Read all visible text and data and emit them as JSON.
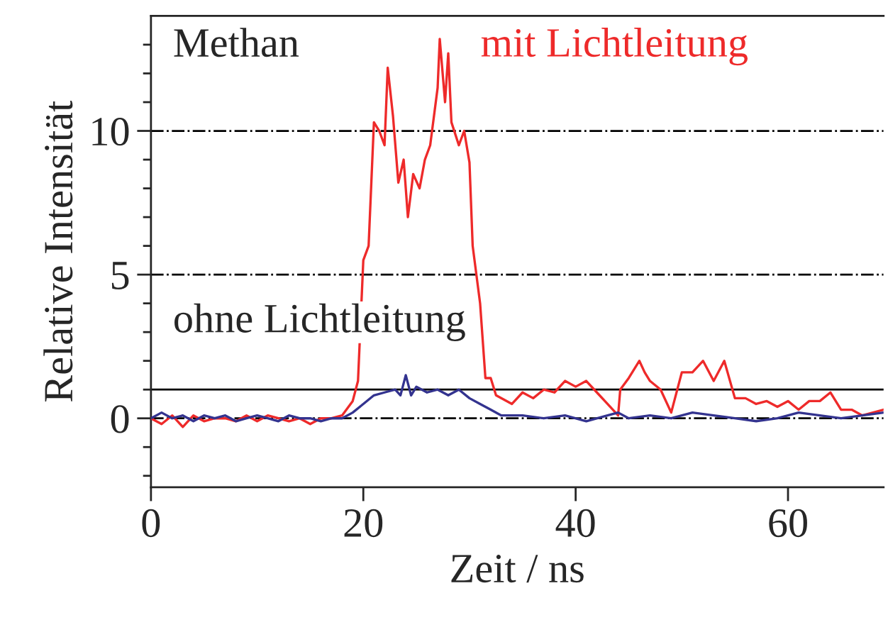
{
  "chart_data": {
    "type": "line",
    "xlabel": "Zeit / ns",
    "ylabel": "Relative Intensität",
    "xlim": [
      0,
      69
    ],
    "ylim": [
      -2.4,
      14
    ],
    "xticks": [
      0,
      20,
      40,
      60
    ],
    "yticks": [
      {
        "value": -2,
        "label": null
      },
      {
        "value": -1,
        "label": null
      },
      0,
      {
        "value": 1,
        "label": null
      },
      {
        "value": 2,
        "label": null
      },
      {
        "value": 3,
        "label": null
      },
      {
        "value": 4,
        "label": null
      },
      5,
      {
        "value": 6,
        "label": null
      },
      {
        "value": 7,
        "label": null
      },
      {
        "value": 8,
        "label": null
      },
      {
        "value": 9,
        "label": null
      },
      10,
      {
        "value": 11,
        "label": null
      },
      {
        "value": 12,
        "label": null
      },
      {
        "value": 13,
        "label": null
      }
    ],
    "grid": false,
    "legend": false,
    "annotations": [
      "Methan",
      "ohne Lichtleitung"
    ],
    "ref_lines": [
      {
        "axis": "y",
        "value": 10,
        "line_style": "dashed",
        "color": "#000000"
      },
      {
        "axis": "y",
        "value": 5,
        "line_style": "dashed",
        "color": "#000000"
      },
      {
        "axis": "y",
        "value": 1,
        "line_style": "solid",
        "color": "#000000"
      },
      {
        "axis": "y",
        "value": 0,
        "line_style": "dashed",
        "color": "#000000"
      }
    ],
    "series": [
      {
        "name": "mit Lichtleitung",
        "color": "#ee2a2a",
        "x": [
          0,
          1,
          2,
          3,
          4,
          5,
          6,
          7,
          8,
          9,
          10,
          11,
          12,
          13,
          14,
          15,
          16,
          17,
          18,
          19,
          19.5,
          20,
          20.5,
          21,
          21.5,
          22,
          22.3,
          22.8,
          23.3,
          23.8,
          24.2,
          24.7,
          25.3,
          25.8,
          26.3,
          27,
          27.2,
          27.7,
          28,
          28.3,
          29,
          29.5,
          30,
          30.3,
          31,
          31.5,
          32,
          32.5,
          34,
          35,
          36,
          37,
          38,
          39,
          40,
          41,
          42,
          43,
          44,
          44.2,
          45,
          46,
          46.5,
          47,
          48,
          49,
          50,
          51,
          52,
          53,
          54,
          55,
          56,
          57,
          58,
          59,
          60,
          61,
          62,
          63,
          64,
          65,
          66,
          67,
          68,
          69
        ],
        "values": [
          0,
          -0.2,
          0.1,
          -0.3,
          0.1,
          -0.1,
          0,
          0,
          -0.1,
          0.1,
          -0.1,
          0.1,
          0,
          -0.1,
          0,
          -0.2,
          0,
          0,
          0.1,
          0.6,
          1.3,
          5.5,
          6.0,
          10.3,
          10.0,
          9.5,
          12.2,
          10.5,
          8.2,
          9.0,
          7.0,
          8.5,
          8.0,
          9.0,
          9.5,
          11.5,
          13.2,
          11.0,
          12.7,
          10.3,
          9.5,
          10.0,
          8.9,
          6.0,
          4.0,
          1.4,
          1.4,
          0.8,
          0.5,
          0.9,
          0.7,
          1.0,
          0.9,
          1.3,
          1.1,
          1.3,
          0.9,
          0.5,
          0.1,
          1.0,
          1.4,
          2.0,
          1.6,
          1.3,
          1.0,
          0.2,
          1.6,
          1.6,
          2.0,
          1.3,
          2.0,
          0.7,
          0.7,
          0.5,
          0.6,
          0.4,
          0.6,
          0.3,
          0.6,
          0.6,
          0.9,
          0.3,
          0.3,
          0.1,
          0.2,
          0.3
        ]
      },
      {
        "color": "#33338f",
        "x": [
          0,
          1,
          2,
          3,
          4,
          5,
          6,
          7,
          8,
          9,
          10,
          11,
          12,
          13,
          14,
          15,
          16,
          17,
          18,
          19,
          20,
          21,
          22,
          23,
          23.5,
          24,
          24.5,
          25,
          26,
          27,
          28,
          29,
          30,
          31,
          32,
          33,
          35,
          37,
          39,
          41,
          43,
          44,
          45,
          47,
          49,
          51,
          53,
          55,
          57,
          59,
          61,
          63,
          65,
          67,
          69
        ],
        "values": [
          0,
          0.2,
          0,
          0.1,
          -0.1,
          0.1,
          0,
          0.1,
          -0.1,
          0,
          0.1,
          0,
          -0.1,
          0.1,
          0,
          0,
          -0.1,
          0,
          0,
          0.2,
          0.5,
          0.8,
          0.9,
          1.0,
          0.8,
          1.5,
          0.8,
          1.1,
          0.9,
          1.0,
          0.8,
          1.0,
          0.7,
          0.5,
          0.3,
          0.1,
          0.1,
          0,
          0.1,
          -0.1,
          0.1,
          0.2,
          0,
          0.1,
          0,
          0.2,
          0.1,
          0,
          -0.1,
          0,
          0.2,
          0.1,
          0,
          0.1,
          0.2
        ]
      }
    ]
  }
}
